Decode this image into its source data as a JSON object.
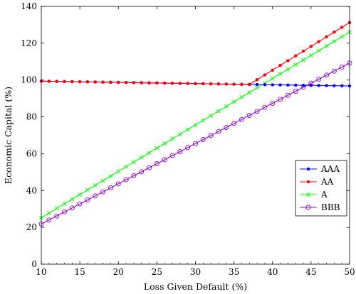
{
  "chart_data": {
    "type": "line",
    "title": "",
    "xlabel": "Loss Given Default (%)",
    "ylabel": "Economic Capital (%)",
    "xlim": [
      10,
      50
    ],
    "ylim": [
      0,
      140
    ],
    "x_ticks": [
      10,
      15,
      20,
      25,
      30,
      35,
      40,
      45,
      50
    ],
    "y_ticks": [
      0,
      20,
      40,
      60,
      80,
      100,
      120,
      140
    ],
    "x_tick_labels": [
      "10",
      "15",
      "20",
      "25",
      "30",
      "35",
      "40",
      "45",
      "50"
    ],
    "y_tick_labels": [
      "0",
      "20",
      "40",
      "60",
      "80",
      "100",
      "120",
      "140"
    ],
    "grid": false,
    "legend_position": "right-middle",
    "series": [
      {
        "name": "AAA",
        "color": "#0000ff",
        "marker": "dot",
        "x": [
          10,
          37,
          50
        ],
        "y": [
          99.4,
          97.6,
          96.8
        ]
      },
      {
        "name": "AA",
        "color": "#ff0000",
        "marker": "dot",
        "x": [
          10,
          37,
          50
        ],
        "y": [
          99.4,
          97.6,
          131.2
        ]
      },
      {
        "name": "A",
        "color": "#00ff00",
        "marker": "cross",
        "x": [
          10,
          50
        ],
        "y": [
          25.2,
          126.0
        ]
      },
      {
        "name": "BBB",
        "color": "#9400d3",
        "marker": "circle",
        "x": [
          10,
          50
        ],
        "y": [
          21.8,
          109.2
        ]
      }
    ]
  }
}
